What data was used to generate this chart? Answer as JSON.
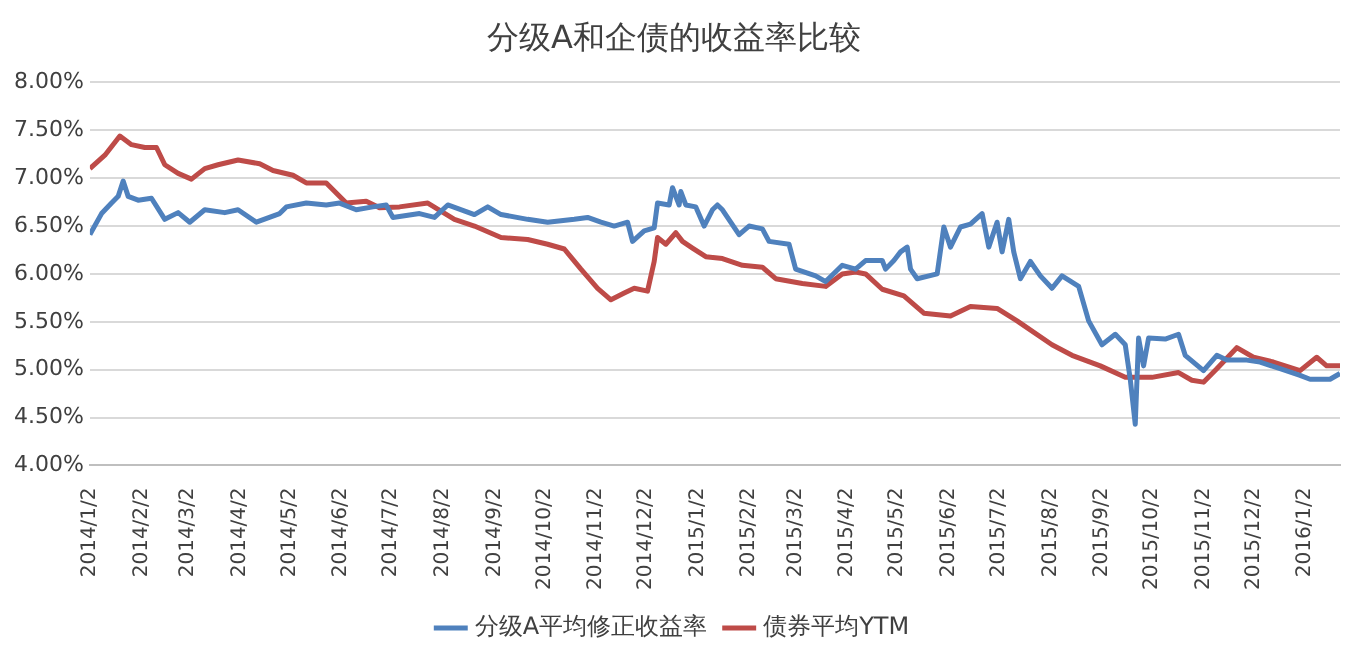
{
  "chart_data": {
    "type": "line",
    "title": "分级A和企债的收益率比较",
    "legend": "bottom",
    "grid": "y",
    "marker": "none",
    "line_style": "solid",
    "xlim": [
      "2014-01-02",
      "2016-01-23"
    ],
    "xticks": [
      {
        "value": "2014-01-02",
        "label": "2014/1/2"
      },
      {
        "value": "2014-02-02",
        "label": "2014/2/2"
      },
      {
        "value": "2014-03-02",
        "label": "2014/3/2"
      },
      {
        "value": "2014-04-02",
        "label": "2014/4/2"
      },
      {
        "value": "2014-05-02",
        "label": "2014/5/2"
      },
      {
        "value": "2014-06-02",
        "label": "2014/6/2"
      },
      {
        "value": "2014-07-02",
        "label": "2014/7/2"
      },
      {
        "value": "2014-08-02",
        "label": "2014/8/2"
      },
      {
        "value": "2014-09-02",
        "label": "2014/9/2"
      },
      {
        "value": "2014-10-02",
        "label": "2014/10/2"
      },
      {
        "value": "2014-11-02",
        "label": "2014/11/2"
      },
      {
        "value": "2014-12-02",
        "label": "2014/12/2"
      },
      {
        "value": "2015-01-02",
        "label": "2015/1/2"
      },
      {
        "value": "2015-02-02",
        "label": "2015/2/2"
      },
      {
        "value": "2015-03-02",
        "label": "2015/3/2"
      },
      {
        "value": "2015-04-02",
        "label": "2015/4/2"
      },
      {
        "value": "2015-05-02",
        "label": "2015/5/2"
      },
      {
        "value": "2015-06-02",
        "label": "2015/6/2"
      },
      {
        "value": "2015-07-02",
        "label": "2015/7/2"
      },
      {
        "value": "2015-08-02",
        "label": "2015/8/2"
      },
      {
        "value": "2015-09-02",
        "label": "2015/9/2"
      },
      {
        "value": "2015-10-02",
        "label": "2015/10/2"
      },
      {
        "value": "2015-11-02",
        "label": "2015/11/2"
      },
      {
        "value": "2015-12-02",
        "label": "2015/12/2"
      },
      {
        "value": "2016-01-02",
        "label": "2016/1/2"
      }
    ],
    "ylim": [
      4,
      8
    ],
    "yticks": [
      {
        "value": 4,
        "label": "4.00%"
      },
      {
        "value": 4.5,
        "label": "4.50%"
      },
      {
        "value": 5,
        "label": "5.00%"
      },
      {
        "value": 5.5,
        "label": "5.50%"
      },
      {
        "value": 6,
        "label": "6.00%"
      },
      {
        "value": 6.5,
        "label": "6.50%"
      },
      {
        "value": 7,
        "label": "7.00%"
      },
      {
        "value": 7.5,
        "label": "7.50%"
      },
      {
        "value": 8,
        "label": "8.00%"
      }
    ],
    "series": [
      {
        "name": "分级A平均修正收益率",
        "color": "#4f81bd",
        "x": [
          "2014-01-02",
          "2014-01-09",
          "2014-01-15",
          "2014-01-19",
          "2014-01-22",
          "2014-01-25",
          "2014-01-31",
          "2014-02-08",
          "2014-02-16",
          "2014-02-24",
          "2014-03-03",
          "2014-03-12",
          "2014-03-24",
          "2014-04-01",
          "2014-04-12",
          "2014-04-26",
          "2014-04-30",
          "2014-05-12",
          "2014-05-24",
          "2014-06-01",
          "2014-06-11",
          "2014-06-21",
          "2014-06-29",
          "2014-07-03",
          "2014-07-19",
          "2014-07-28",
          "2014-08-05",
          "2014-08-21",
          "2014-08-29",
          "2014-09-06",
          "2014-09-22",
          "2014-10-04",
          "2014-10-20",
          "2014-10-28",
          "2014-11-05",
          "2014-11-13",
          "2014-11-21",
          "2014-11-24",
          "2014-12-01",
          "2014-12-07",
          "2014-12-09",
          "2014-12-16",
          "2014-12-18",
          "2014-12-22",
          "2014-12-23",
          "2014-12-26",
          "2015-01-01",
          "2015-01-06",
          "2015-01-11",
          "2015-01-14",
          "2015-01-17",
          "2015-01-27",
          "2015-02-02",
          "2015-02-10",
          "2015-02-14",
          "2015-02-26",
          "2015-03-02",
          "2015-03-14",
          "2015-03-20",
          "2015-03-30",
          "2015-04-07",
          "2015-04-13",
          "2015-04-23",
          "2015-04-25",
          "2015-04-30",
          "2015-05-04",
          "2015-05-08",
          "2015-05-10",
          "2015-05-14",
          "2015-05-26",
          "2015-05-30",
          "2015-06-03",
          "2015-06-09",
          "2015-06-15",
          "2015-06-22",
          "2015-06-26",
          "2015-07-01",
          "2015-07-04",
          "2015-07-08",
          "2015-07-11",
          "2015-07-15",
          "2015-07-21",
          "2015-07-27",
          "2015-08-03",
          "2015-08-09",
          "2015-08-19",
          "2015-08-25",
          "2015-09-02",
          "2015-09-10",
          "2015-09-16",
          "2015-09-19",
          "2015-09-22",
          "2015-09-24",
          "2015-09-27",
          "2015-09-30",
          "2015-10-10",
          "2015-10-18",
          "2015-10-22",
          "2015-11-02",
          "2015-11-10",
          "2015-11-16",
          "2015-11-28",
          "2015-12-06",
          "2015-12-18",
          "2015-12-30",
          "2016-01-05",
          "2016-01-17",
          "2016-01-23"
        ],
        "values": [
          6.41,
          6.63,
          6.74,
          6.81,
          6.97,
          6.81,
          6.77,
          6.79,
          6.57,
          6.64,
          6.54,
          6.67,
          6.64,
          6.67,
          6.54,
          6.63,
          6.7,
          6.74,
          6.72,
          6.74,
          6.67,
          6.7,
          6.72,
          6.59,
          6.63,
          6.59,
          6.72,
          6.62,
          6.7,
          6.62,
          6.57,
          6.54,
          6.57,
          6.59,
          6.54,
          6.5,
          6.54,
          6.34,
          6.45,
          6.48,
          6.74,
          6.72,
          6.9,
          6.72,
          6.86,
          6.72,
          6.7,
          6.5,
          6.67,
          6.72,
          6.67,
          6.41,
          6.5,
          6.47,
          6.34,
          6.31,
          6.05,
          5.98,
          5.92,
          6.09,
          6.05,
          6.14,
          6.14,
          6.05,
          6.14,
          6.23,
          6.28,
          6.05,
          5.95,
          6.0,
          6.49,
          6.28,
          6.49,
          6.52,
          6.63,
          6.28,
          6.54,
          6.23,
          6.57,
          6.23,
          5.95,
          6.13,
          5.98,
          5.85,
          5.98,
          5.87,
          5.51,
          5.26,
          5.37,
          5.26,
          4.9,
          4.43,
          5.33,
          5.04,
          5.33,
          5.32,
          5.37,
          5.15,
          4.99,
          5.15,
          5.1,
          5.1,
          5.08,
          5.01,
          4.94,
          4.9,
          4.9,
          4.96
        ]
      },
      {
        "name": "债券平均YTM",
        "color": "#be4b48",
        "x": [
          "2014-01-02",
          "2014-01-11",
          "2014-01-20",
          "2014-01-27",
          "2014-02-04",
          "2014-02-11",
          "2014-02-16",
          "2014-02-24",
          "2014-03-04",
          "2014-03-12",
          "2014-03-20",
          "2014-04-01",
          "2014-04-14",
          "2014-04-22",
          "2014-05-04",
          "2014-05-12",
          "2014-05-24",
          "2014-06-05",
          "2014-06-17",
          "2014-06-25",
          "2014-07-07",
          "2014-07-24",
          "2014-08-09",
          "2014-08-21",
          "2014-09-06",
          "2014-09-22",
          "2014-10-04",
          "2014-10-14",
          "2014-10-24",
          "2014-11-03",
          "2014-11-11",
          "2014-11-19",
          "2014-11-25",
          "2014-12-03",
          "2014-12-07",
          "2014-12-09",
          "2014-12-14",
          "2014-12-20",
          "2014-12-24",
          "2014-12-30",
          "2015-01-07",
          "2015-01-17",
          "2015-01-29",
          "2015-02-10",
          "2015-02-18",
          "2015-03-06",
          "2015-03-20",
          "2015-03-30",
          "2015-04-07",
          "2015-04-13",
          "2015-04-23",
          "2015-05-06",
          "2015-05-18",
          "2015-06-03",
          "2015-06-15",
          "2015-07-01",
          "2015-07-13",
          "2015-08-03",
          "2015-08-15",
          "2015-09-01",
          "2015-09-16",
          "2015-10-02",
          "2015-10-18",
          "2015-10-26",
          "2015-11-02",
          "2015-11-10",
          "2015-11-22",
          "2015-12-02",
          "2015-12-14",
          "2015-12-30",
          "2016-01-09",
          "2016-01-15",
          "2016-01-23"
        ],
        "values": [
          7.1,
          7.24,
          7.44,
          7.35,
          7.32,
          7.32,
          7.14,
          7.05,
          6.99,
          7.1,
          7.14,
          7.19,
          7.15,
          7.08,
          7.03,
          6.95,
          6.95,
          6.74,
          6.76,
          6.69,
          6.7,
          6.74,
          6.57,
          6.5,
          6.38,
          6.36,
          6.31,
          6.26,
          6.05,
          5.85,
          5.73,
          5.8,
          5.85,
          5.82,
          6.13,
          6.38,
          6.31,
          6.43,
          6.34,
          6.27,
          6.18,
          6.16,
          6.09,
          6.07,
          5.95,
          5.9,
          5.87,
          6.0,
          6.02,
          6.0,
          5.84,
          5.77,
          5.59,
          5.56,
          5.66,
          5.64,
          5.51,
          5.26,
          5.15,
          5.04,
          4.92,
          4.92,
          4.97,
          4.89,
          4.87,
          5.01,
          5.23,
          5.13,
          5.08,
          4.99,
          5.13,
          5.04,
          5.04
        ]
      }
    ]
  }
}
